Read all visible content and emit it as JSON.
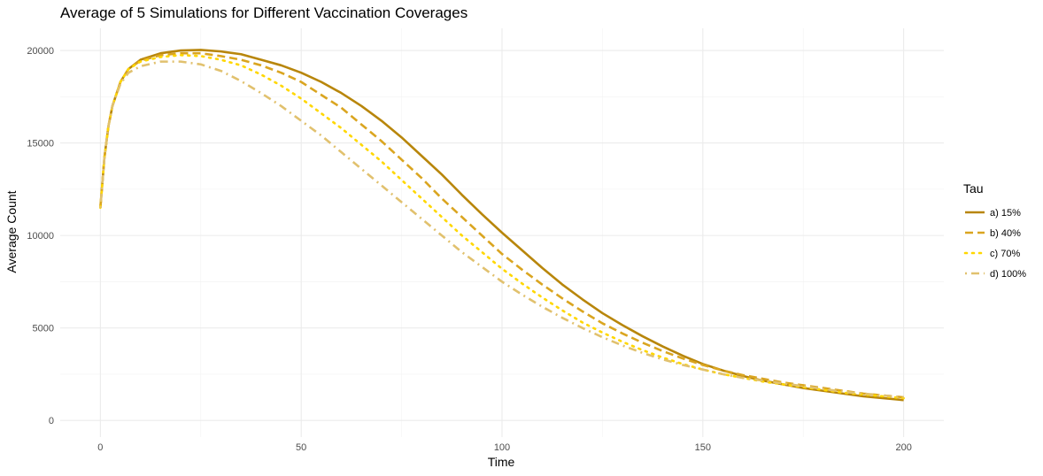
{
  "chart_data": {
    "type": "line",
    "title": "Average of 5 Simulations for Different Vaccination Coverages",
    "xlabel": "Time",
    "ylabel": "Average Count",
    "xlim": [
      -10,
      210
    ],
    "ylim": [
      -900,
      21200
    ],
    "x_ticks": [
      0,
      50,
      100,
      150,
      200
    ],
    "x_tick_labels": [
      "0",
      "50",
      "100",
      "150",
      "200"
    ],
    "y_ticks": [
      0,
      5000,
      10000,
      15000,
      20000
    ],
    "y_tick_labels": [
      "0",
      "5000",
      "10000",
      "15000",
      "20000"
    ],
    "grid": true,
    "legend": {
      "title": "Tau",
      "position": "right"
    },
    "x": [
      0,
      1,
      2,
      3,
      5,
      7,
      10,
      15,
      20,
      25,
      30,
      35,
      40,
      45,
      50,
      55,
      60,
      65,
      70,
      75,
      80,
      85,
      90,
      95,
      100,
      105,
      110,
      115,
      120,
      125,
      130,
      135,
      140,
      145,
      150,
      155,
      160,
      165,
      170,
      175,
      180,
      185,
      190,
      195,
      200
    ],
    "series": [
      {
        "name": "a) 15%",
        "color": "#B8860B",
        "dash": "solid",
        "values": [
          11500,
          14200,
          15900,
          17000,
          18300,
          19000,
          19500,
          19850,
          20000,
          20030,
          19950,
          19800,
          19500,
          19200,
          18800,
          18300,
          17700,
          17000,
          16200,
          15300,
          14300,
          13300,
          12200,
          11150,
          10150,
          9200,
          8250,
          7350,
          6550,
          5800,
          5150,
          4550,
          4000,
          3500,
          3050,
          2700,
          2400,
          2150,
          1950,
          1750,
          1600,
          1450,
          1300,
          1200,
          1100
        ]
      },
      {
        "name": "b) 40%",
        "color": "#DAA520",
        "dash": "dashed",
        "values": [
          11500,
          14200,
          15900,
          17000,
          18300,
          19000,
          19450,
          19750,
          19850,
          19850,
          19700,
          19500,
          19200,
          18800,
          18300,
          17600,
          16900,
          16000,
          15100,
          14100,
          13100,
          12000,
          11000,
          10000,
          9000,
          8150,
          7350,
          6600,
          5900,
          5250,
          4700,
          4200,
          3750,
          3350,
          3000,
          2700,
          2450,
          2250,
          2050,
          1900,
          1750,
          1600,
          1450,
          1350,
          1250
        ]
      },
      {
        "name": "c) 70%",
        "color": "#FFD700",
        "dash": "dotted",
        "values": [
          11500,
          14200,
          15900,
          17000,
          18300,
          19000,
          19400,
          19650,
          19750,
          19700,
          19500,
          19200,
          18700,
          18100,
          17400,
          16600,
          15800,
          14900,
          14000,
          13000,
          12000,
          11000,
          10000,
          9100,
          8200,
          7400,
          6650,
          5950,
          5300,
          4750,
          4250,
          3800,
          3400,
          3050,
          2750,
          2500,
          2300,
          2100,
          1950,
          1800,
          1650,
          1500,
          1400,
          1300,
          1200
        ]
      },
      {
        "name": "d) 100%",
        "color": "#E1C16E",
        "dash": "dotdash",
        "values": [
          11500,
          14200,
          15900,
          17000,
          18200,
          18800,
          19150,
          19400,
          19400,
          19250,
          18900,
          18350,
          17700,
          17000,
          16200,
          15400,
          14500,
          13600,
          12700,
          11800,
          10900,
          10000,
          9100,
          8300,
          7500,
          6800,
          6150,
          5550,
          5000,
          4500,
          4050,
          3650,
          3300,
          3000,
          2750,
          2500,
          2300,
          2150,
          2000,
          1850,
          1700,
          1550,
          1450,
          1350,
          1250
        ]
      }
    ]
  }
}
